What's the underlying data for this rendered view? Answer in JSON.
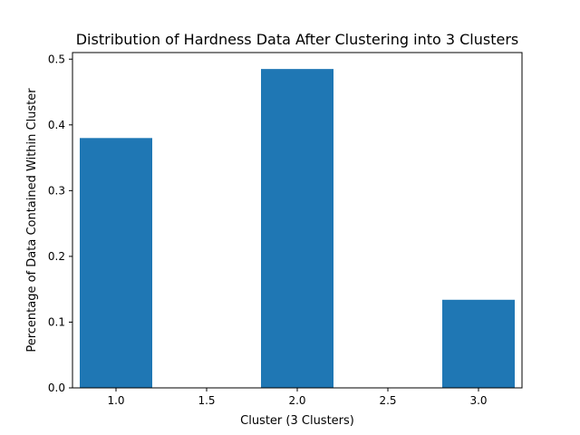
{
  "chart_data": {
    "type": "bar",
    "title": "Distribution of Hardness Data After Clustering into 3 Clusters",
    "xlabel": "Cluster (3 Clusters)",
    "ylabel": "Percentage of Data Contained Within Cluster",
    "x": [
      1.0,
      2.0,
      3.0
    ],
    "values": [
      0.38,
      0.485,
      0.134
    ],
    "bar_width": 0.4,
    "xlim": [
      0.76,
      3.24
    ],
    "ylim": [
      0,
      0.51
    ],
    "xticks": [
      1.0,
      1.5,
      2.0,
      2.5,
      3.0
    ],
    "xtick_labels": [
      "1.0",
      "1.5",
      "2.0",
      "2.5",
      "3.0"
    ],
    "yticks": [
      0.0,
      0.1,
      0.2,
      0.3,
      0.4,
      0.5
    ],
    "ytick_labels": [
      "0.0",
      "0.1",
      "0.2",
      "0.3",
      "0.4",
      "0.5"
    ],
    "grid": false,
    "bar_color": "#1f77b4"
  }
}
